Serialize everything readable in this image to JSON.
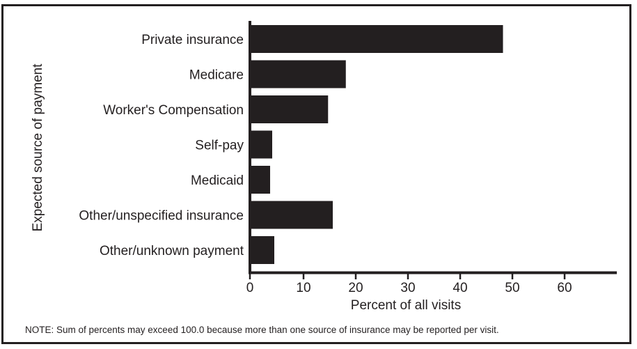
{
  "chart_data": {
    "type": "bar",
    "orientation": "horizontal",
    "categories": [
      "Private insurance",
      "Medicare",
      "Worker's Compensation",
      "Self-pay",
      "Medicaid",
      "Other/unspecified insurance",
      "Other/unknown payment"
    ],
    "values": [
      48.2,
      18.1,
      14.7,
      4.0,
      3.6,
      15.6,
      4.4
    ],
    "xlabel": "Percent of all visits",
    "ylabel": "Expected source of payment",
    "xlim": [
      0,
      70
    ],
    "x_ticks": [
      0,
      10,
      20,
      30,
      40,
      50,
      60
    ],
    "grid": false,
    "bar_color": "#231f20",
    "note": "NOTE: Sum of percents may exceed 100.0 because more than one source of insurance may be reported per visit."
  }
}
